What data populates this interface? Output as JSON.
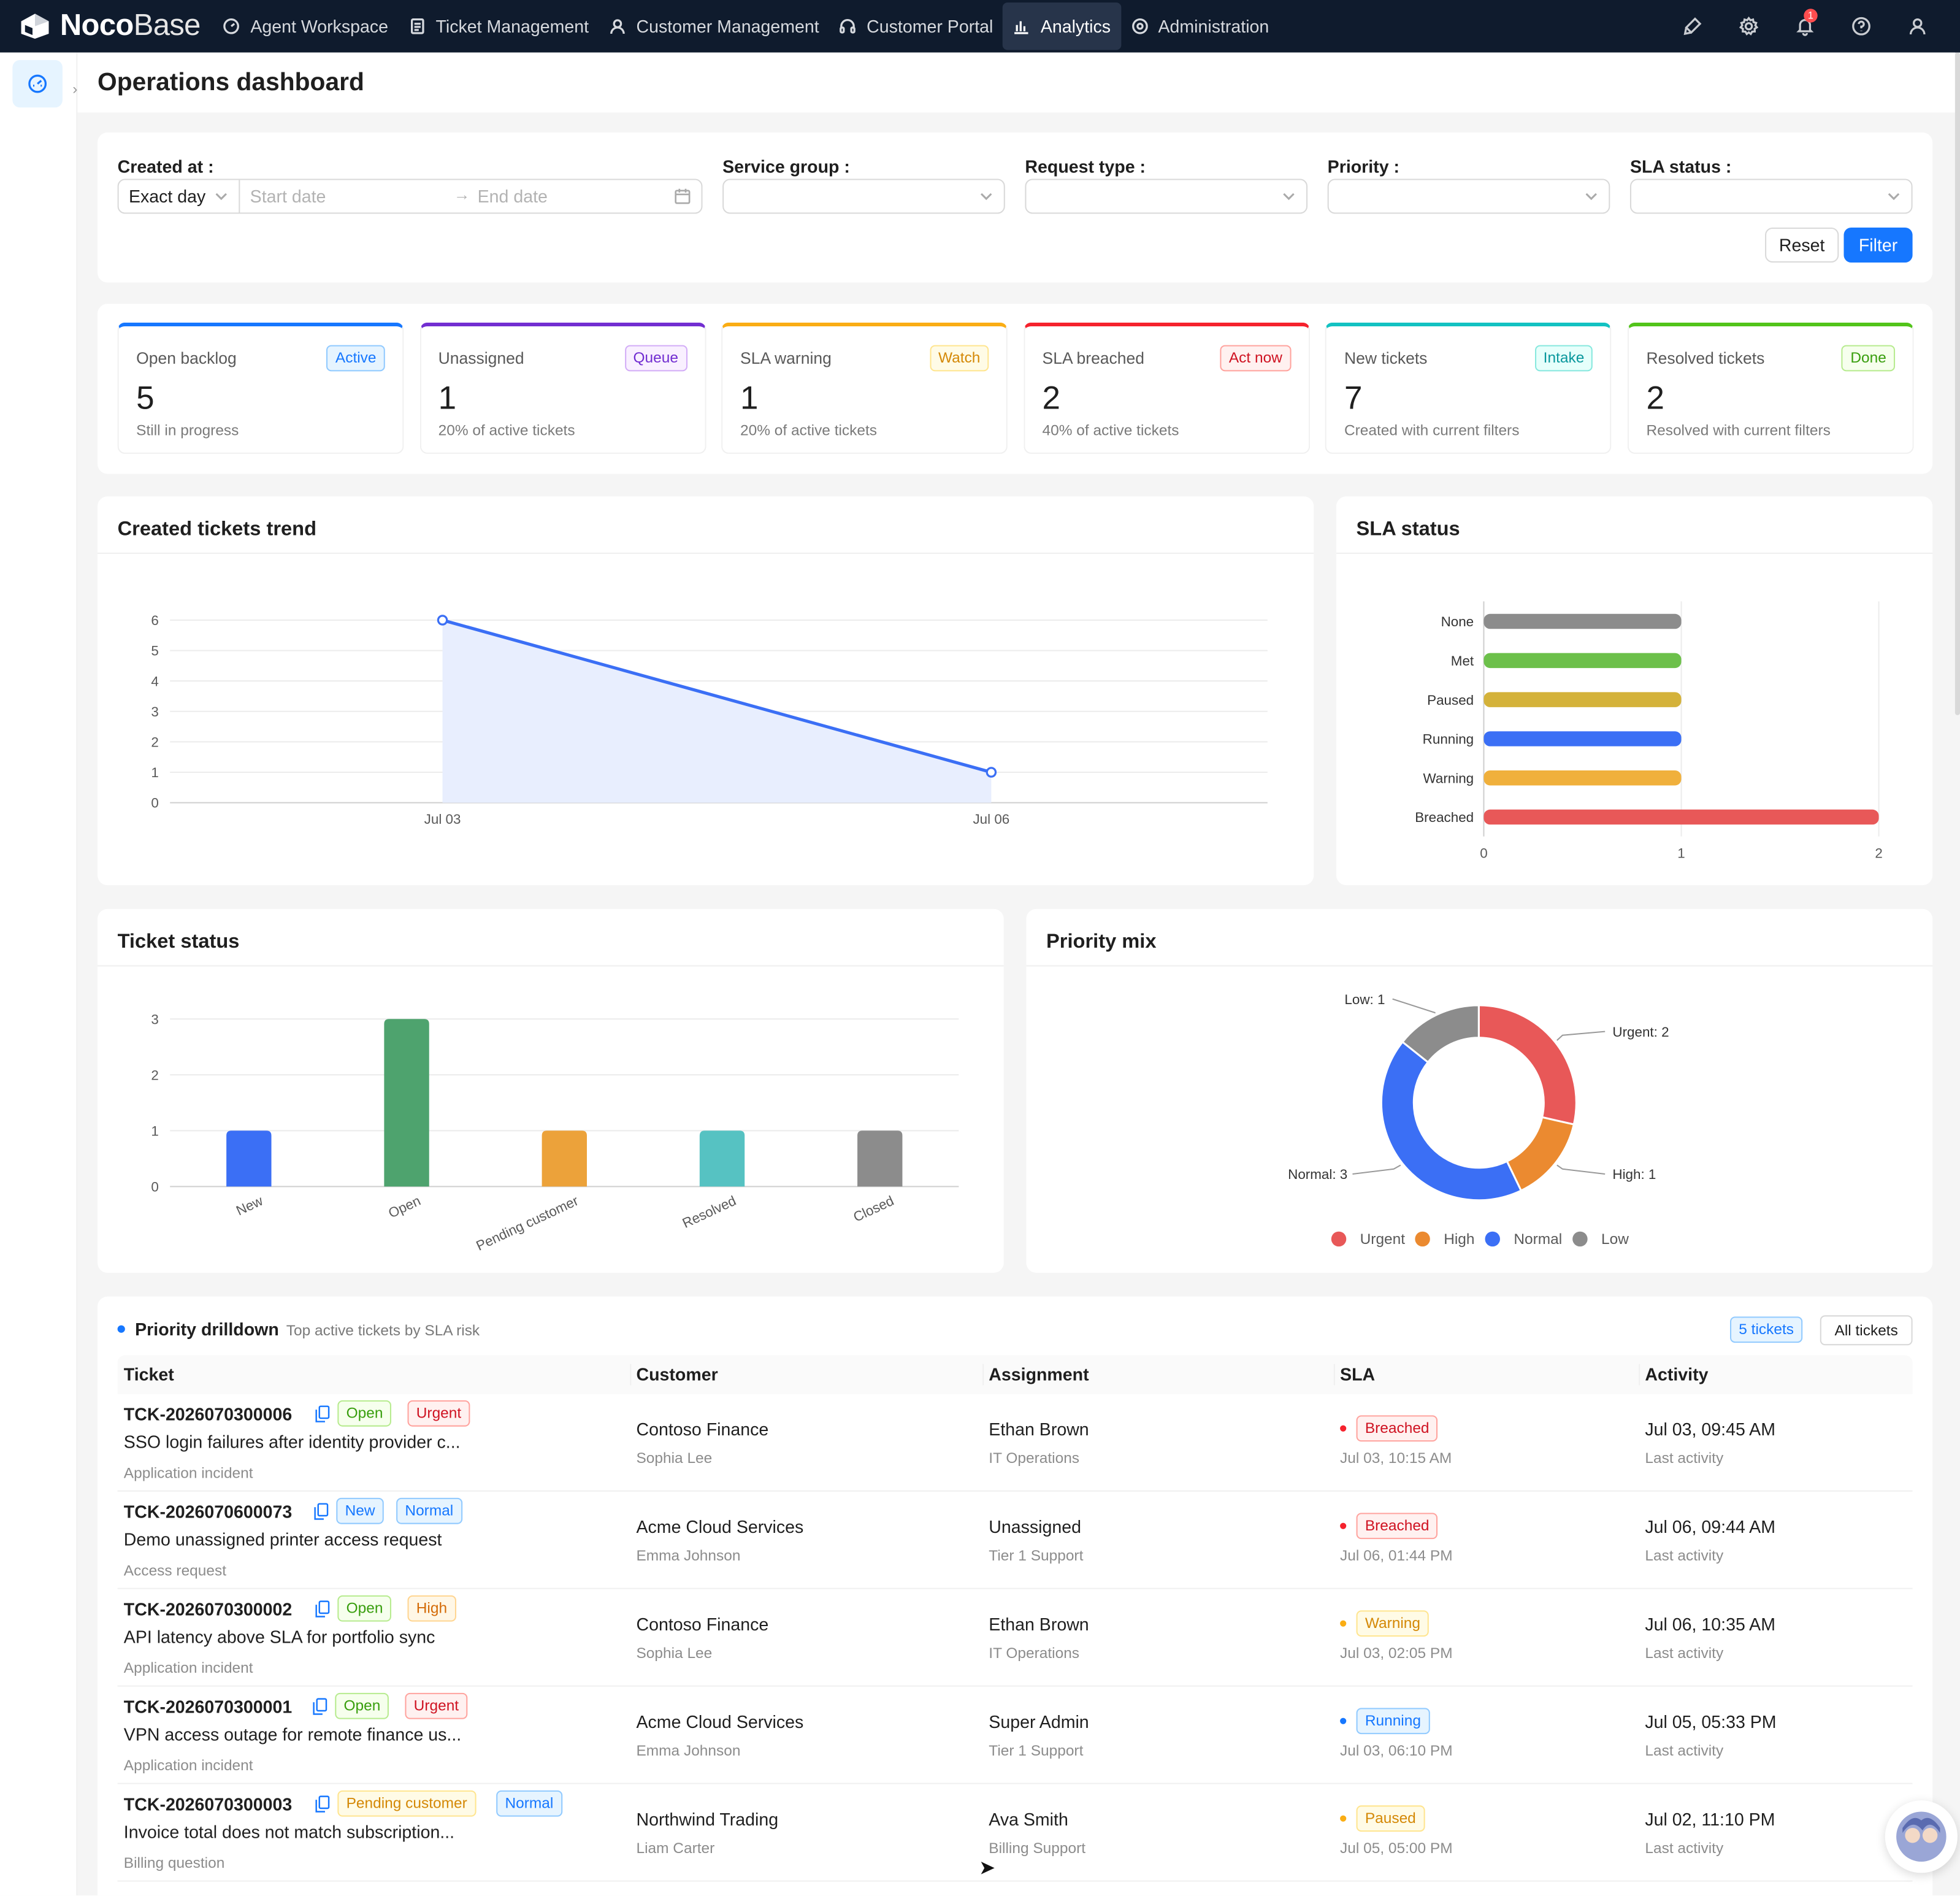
{
  "app": {
    "logo_bold": "Noco",
    "logo_light": "Base"
  },
  "nav": {
    "items": [
      {
        "label": "Agent Workspace",
        "icon": "dashboard-icon"
      },
      {
        "label": "Ticket Management",
        "icon": "document-icon"
      },
      {
        "label": "Customer Management",
        "icon": "user-icon"
      },
      {
        "label": "Customer Portal",
        "icon": "headset-icon"
      },
      {
        "label": "Analytics",
        "icon": "bar-chart-icon",
        "active": true
      },
      {
        "label": "Administration",
        "icon": "gear-icon"
      }
    ],
    "notification_count": "1"
  },
  "page": {
    "title": "Operations dashboard"
  },
  "filters": {
    "created_at_label": "Created at :",
    "date_mode": "Exact day",
    "start_placeholder": "Start date",
    "end_placeholder": "End date",
    "service_group_label": "Service group :",
    "request_type_label": "Request type :",
    "priority_label": "Priority :",
    "sla_status_label": "SLA status :",
    "reset_label": "Reset",
    "filter_label": "Filter"
  },
  "stats": [
    {
      "label": "Open backlog",
      "tag": "Active",
      "value": "5",
      "sub": "Still in progress",
      "accent": "#1677ff"
    },
    {
      "label": "Unassigned",
      "tag": "Queue",
      "value": "1",
      "sub": "20% of active tickets",
      "accent": "#722ed1"
    },
    {
      "label": "SLA warning",
      "tag": "Watch",
      "value": "1",
      "sub": "20% of active tickets",
      "accent": "#faad14"
    },
    {
      "label": "SLA breached",
      "tag": "Act now",
      "value": "2",
      "sub": "40% of active tickets",
      "accent": "#f5222d"
    },
    {
      "label": "New tickets",
      "tag": "Intake",
      "value": "7",
      "sub": "Created with current filters",
      "accent": "#13c2c2"
    },
    {
      "label": "Resolved tickets",
      "tag": "Done",
      "value": "2",
      "sub": "Resolved with current filters",
      "accent": "#52c41a"
    }
  ],
  "charts": {
    "trend_title": "Created tickets trend",
    "sla_title": "SLA status",
    "status_title": "Ticket status",
    "priority_title": "Priority mix"
  },
  "chart_data": [
    {
      "type": "area",
      "title": "Created tickets trend",
      "x": [
        "Jul 03",
        "Jul 06"
      ],
      "values": [
        6,
        1
      ],
      "ylim": [
        0,
        6
      ],
      "yticks": [
        0,
        1,
        2,
        3,
        4,
        5,
        6
      ],
      "color": "#3b6ff5",
      "grid": true
    },
    {
      "type": "bar",
      "orientation": "horizontal",
      "title": "SLA status",
      "categories": [
        "None",
        "Met",
        "Paused",
        "Running",
        "Warning",
        "Breached"
      ],
      "values": [
        1,
        1,
        1,
        1,
        1,
        2
      ],
      "colors": [
        "#8c8c8c",
        "#6cc04a",
        "#d4b23a",
        "#3b6ff5",
        "#f0b03c",
        "#e85858"
      ],
      "xlim": [
        0,
        2
      ],
      "xticks": [
        0,
        1,
        2
      ]
    },
    {
      "type": "bar",
      "title": "Ticket status",
      "categories": [
        "New",
        "Open",
        "Pending customer",
        "Resolved",
        "Closed"
      ],
      "values": [
        1,
        3,
        1,
        1,
        1
      ],
      "colors": [
        "#3b6ff5",
        "#4ea36e",
        "#eca23a",
        "#56c2c2",
        "#8c8c8c"
      ],
      "ylim": [
        0,
        3
      ],
      "yticks": [
        0,
        1,
        2,
        3
      ]
    },
    {
      "type": "pie",
      "title": "Priority mix",
      "categories": [
        "Urgent",
        "High",
        "Normal",
        "Low"
      ],
      "values": [
        2,
        1,
        3,
        1
      ],
      "labels": [
        "Urgent: 2",
        "High: 1",
        "Normal: 3",
        "Low: 1"
      ],
      "colors": [
        "#e85858",
        "#eb8a30",
        "#3b6ff5",
        "#8c8c8c"
      ],
      "legend": "bottom"
    }
  ],
  "drilldown": {
    "title": "Priority drilldown",
    "subtitle": "Top active tickets by SLA risk",
    "count_badge": "5 tickets",
    "all_button": "All tickets",
    "columns": [
      "Ticket",
      "Customer",
      "Assignment",
      "SLA",
      "Activity"
    ],
    "rows": [
      {
        "id": "TCK-2026070300006",
        "status": "Open",
        "priority": "Urgent",
        "subject": "SSO login failures after identity provider c...",
        "type": "Application incident",
        "customer": "Contoso Finance",
        "contact": "Sophia Lee",
        "assignee": "Ethan Brown",
        "team": "IT Operations",
        "sla": "Breached",
        "sla_time": "Jul 03, 10:15 AM",
        "activity": "Jul 03, 09:45 AM",
        "activity_label": "Last activity"
      },
      {
        "id": "TCK-2026070600073",
        "status": "New",
        "priority": "Normal",
        "subject": "Demo unassigned printer access request",
        "type": "Access request",
        "customer": "Acme Cloud Services",
        "contact": "Emma Johnson",
        "assignee": "Unassigned",
        "team": "Tier 1 Support",
        "sla": "Breached",
        "sla_time": "Jul 06, 01:44 PM",
        "activity": "Jul 06, 09:44 AM",
        "activity_label": "Last activity"
      },
      {
        "id": "TCK-2026070300002",
        "status": "Open",
        "priority": "High",
        "subject": "API latency above SLA for portfolio sync",
        "type": "Application incident",
        "customer": "Contoso Finance",
        "contact": "Sophia Lee",
        "assignee": "Ethan Brown",
        "team": "IT Operations",
        "sla": "Warning",
        "sla_time": "Jul 03, 02:05 PM",
        "activity": "Jul 06, 10:35 AM",
        "activity_label": "Last activity"
      },
      {
        "id": "TCK-2026070300001",
        "status": "Open",
        "priority": "Urgent",
        "subject": "VPN access outage for remote finance us...",
        "type": "Application incident",
        "customer": "Acme Cloud Services",
        "contact": "Emma Johnson",
        "assignee": "Super Admin",
        "team": "Tier 1 Support",
        "sla": "Running",
        "sla_time": "Jul 03, 06:10 PM",
        "activity": "Jul 05, 05:33 PM",
        "activity_label": "Last activity"
      },
      {
        "id": "TCK-2026070300003",
        "status": "Pending customer",
        "priority": "Normal",
        "subject": "Invoice total does not match subscription...",
        "type": "Billing question",
        "customer": "Northwind Trading",
        "contact": "Liam Carter",
        "assignee": "Ava Smith",
        "team": "Billing Support",
        "sla": "Paused",
        "sla_time": "Jul 05, 05:00 PM",
        "activity": "Jul 02, 11:10 PM",
        "activity_label": "Last activity"
      }
    ]
  }
}
